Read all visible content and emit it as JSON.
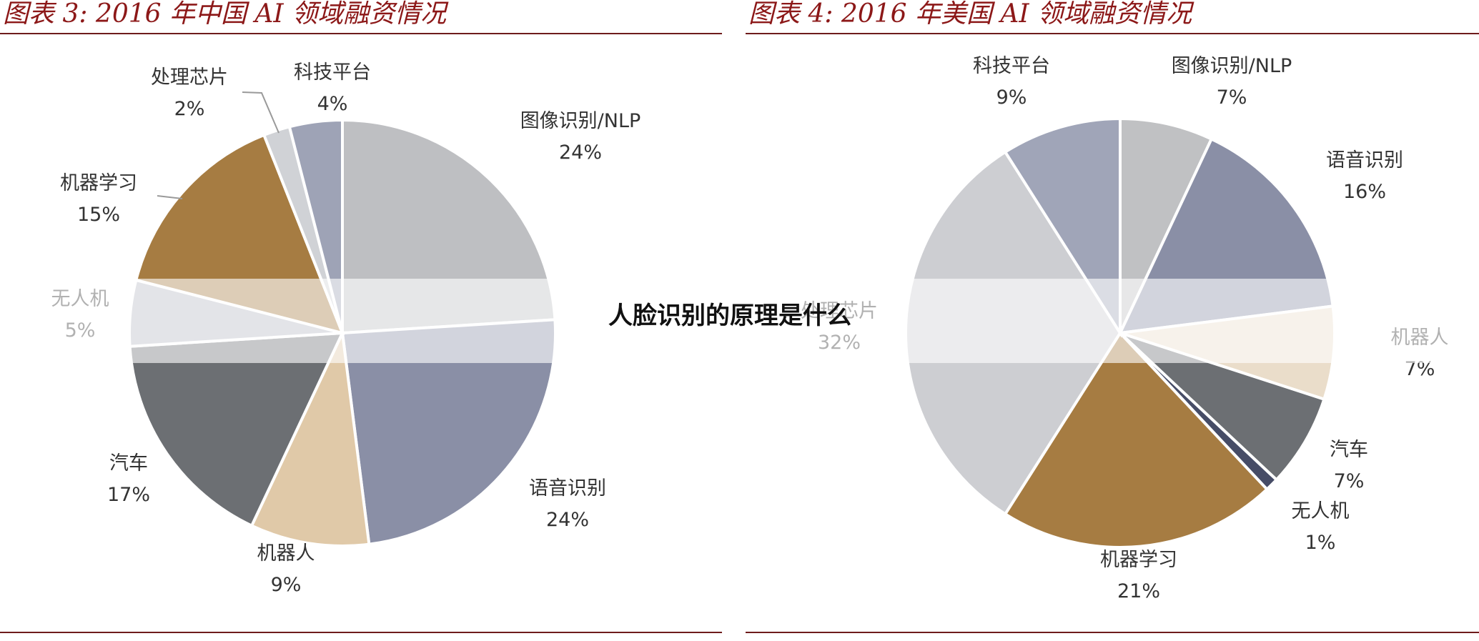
{
  "overlay": {
    "title": "人脸识别的原理是什么"
  },
  "chart_data": [
    {
      "type": "pie",
      "title": "图表 3: 2016 年中国 AI 领域融资情况",
      "slices": [
        {
          "label": "图像识别/NLP",
          "value": 24,
          "display": "24%",
          "color": "#bebfc2"
        },
        {
          "label": "语音识别",
          "value": 24,
          "display": "24%",
          "color": "#8a8fa6"
        },
        {
          "label": "机器人",
          "value": 9,
          "display": "9%",
          "color": "#e0c9a8"
        },
        {
          "label": "汽车",
          "value": 17,
          "display": "17%",
          "color": "#6c6f73"
        },
        {
          "label": "无人机",
          "value": 5,
          "display": "5%",
          "color": "#b6b8c2"
        },
        {
          "label": "机器学习",
          "value": 15,
          "display": "15%",
          "color": "#a67c42"
        },
        {
          "label": "处理芯片",
          "value": 2,
          "display": "2%",
          "color": "#d0d2d6"
        },
        {
          "label": "科技平台",
          "value": 4,
          "display": "4%",
          "color": "#9ea3b6"
        }
      ]
    },
    {
      "type": "pie",
      "title": "图表 4: 2016 年美国 AI 领域融资情况",
      "slices": [
        {
          "label": "图像识别/NLP",
          "value": 7,
          "display": "7%",
          "color": "#c0c1c3"
        },
        {
          "label": "语音识别",
          "value": 16,
          "display": "16%",
          "color": "#8a8fa6"
        },
        {
          "label": "机器人",
          "value": 7,
          "display": "7%",
          "color": "#eaddca"
        },
        {
          "label": "汽车",
          "value": 7,
          "display": "7%",
          "color": "#6c6f73"
        },
        {
          "label": "无人机",
          "value": 1,
          "display": "1%",
          "color": "#464c66"
        },
        {
          "label": "机器学习",
          "value": 21,
          "display": "21%",
          "color": "#a67c42"
        },
        {
          "label": "处理芯片",
          "value": 32,
          "display": "32%",
          "color": "#cdced2"
        },
        {
          "label": "科技平台",
          "value": 9,
          "display": "9%",
          "color": "#a0a5b8"
        }
      ]
    }
  ]
}
